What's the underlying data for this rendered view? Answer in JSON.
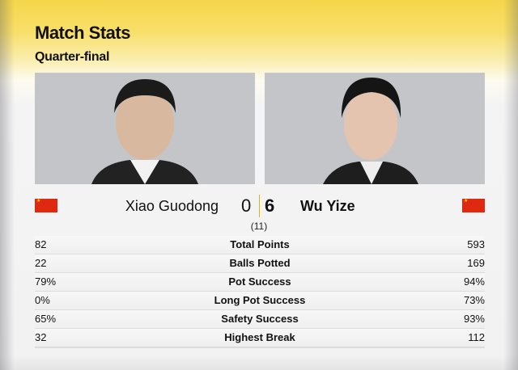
{
  "header": {
    "title": "Match Stats",
    "subtitle": "Quarter-final"
  },
  "players": [
    {
      "name": "Xiao Guodong",
      "score": "0",
      "flag": "china-flag-icon"
    },
    {
      "name": "Wu Yize",
      "score": "6",
      "flag": "china-flag-icon"
    }
  ],
  "frames_total": "(11)",
  "colors": {
    "accent": "#f5d64a",
    "flag_red": "#de2910"
  },
  "stats": [
    {
      "label": "Total Points",
      "left": "82",
      "right": "593"
    },
    {
      "label": "Balls Potted",
      "left": "22",
      "right": "169"
    },
    {
      "label": "Pot Success",
      "left": "79%",
      "right": "94%"
    },
    {
      "label": "Long Pot Success",
      "left": "0%",
      "right": "73%"
    },
    {
      "label": "Safety Success",
      "left": "65%",
      "right": "93%"
    },
    {
      "label": "Highest Break",
      "left": "32",
      "right": "112"
    }
  ]
}
